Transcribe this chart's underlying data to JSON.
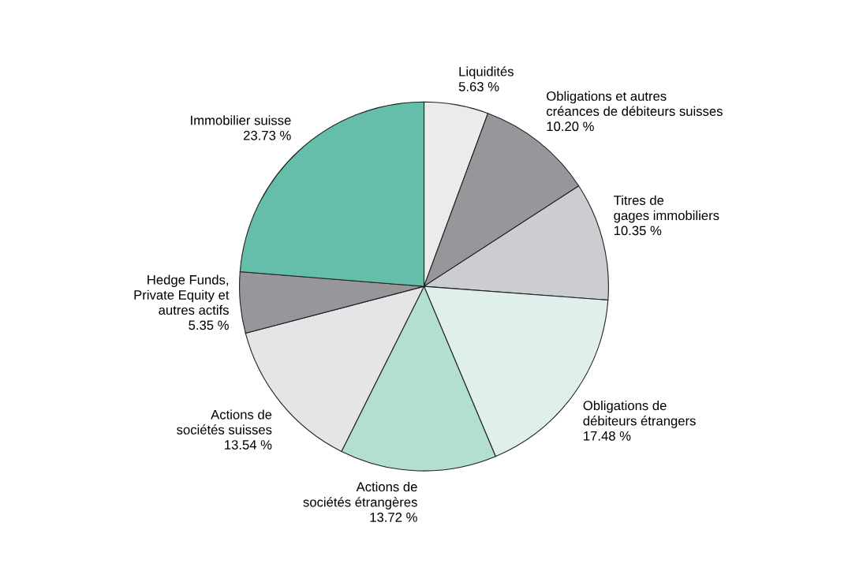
{
  "chart_data": {
    "type": "pie",
    "categories": [
      "Liquidités",
      "Obligations et autres\ncréances de débiteurs suisses",
      "Titres de\ngages immobiliers",
      "Obligations de\ndébiteurs étrangers",
      "Actions de\nsociétés étrangères",
      "Actions de\nsociétés suisses",
      "Hedge Funds,\nPrivate Equity et\nautres actifs",
      "Immobilier suisse"
    ],
    "values": [
      5.63,
      10.2,
      10.35,
      17.48,
      13.72,
      13.54,
      5.35,
      23.73
    ],
    "value_labels": [
      "5.63 %",
      "10.20 %",
      "10.35 %",
      "17.48 %",
      "13.72 %",
      "13.54 %",
      "5.35 %",
      "23.73 %"
    ],
    "colors": [
      "#ebebea",
      "#97979b",
      "#cbcdd0",
      "#dff0ec",
      "#b3dfd3",
      "#e4e5e7",
      "#97979b",
      "#64bea9"
    ]
  }
}
